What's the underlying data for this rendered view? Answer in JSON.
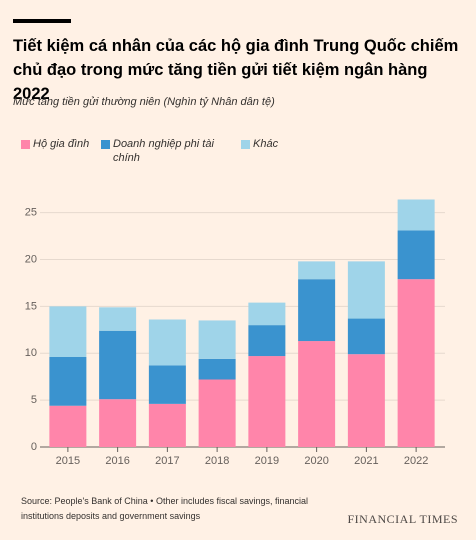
{
  "chart_data": {
    "type": "stacked_bar",
    "title": "Tiết kiệm cá nhân của các hộ gia đình Trung Quốc chiếm chủ đạo trong mức tăng tiền gửi tiết kiệm ngân hàng 2022",
    "subtitle": "Mức tăng tiền gửi thường niên (Nghìn tỷ Nhân dân tệ)",
    "categories": [
      "2015",
      "2016",
      "2017",
      "2018",
      "2019",
      "2020",
      "2021",
      "2022"
    ],
    "series": [
      {
        "name": "Hộ gia đình",
        "color": "#ff85aa",
        "values": [
          4.4,
          5.1,
          4.6,
          7.2,
          9.7,
          11.3,
          9.9,
          17.9
        ]
      },
      {
        "name": "Doanh nghiệp phi tài chính",
        "color": "#3a93cf",
        "values": [
          5.2,
          7.3,
          4.1,
          2.2,
          3.3,
          6.6,
          3.8,
          5.2
        ]
      },
      {
        "name": "Khác",
        "color": "#9fd4e9",
        "values": [
          5.4,
          2.5,
          4.9,
          4.1,
          2.4,
          1.9,
          6.1,
          3.3
        ]
      }
    ],
    "ylim": [
      0,
      25.6
    ],
    "yticks": [
      0,
      5,
      10,
      15,
      20,
      25
    ],
    "grid": true,
    "source": "Source: People's Bank of China • Other includes fiscal savings, financial institutions deposits and government savings",
    "brand": "FINANCIAL TIMES"
  }
}
